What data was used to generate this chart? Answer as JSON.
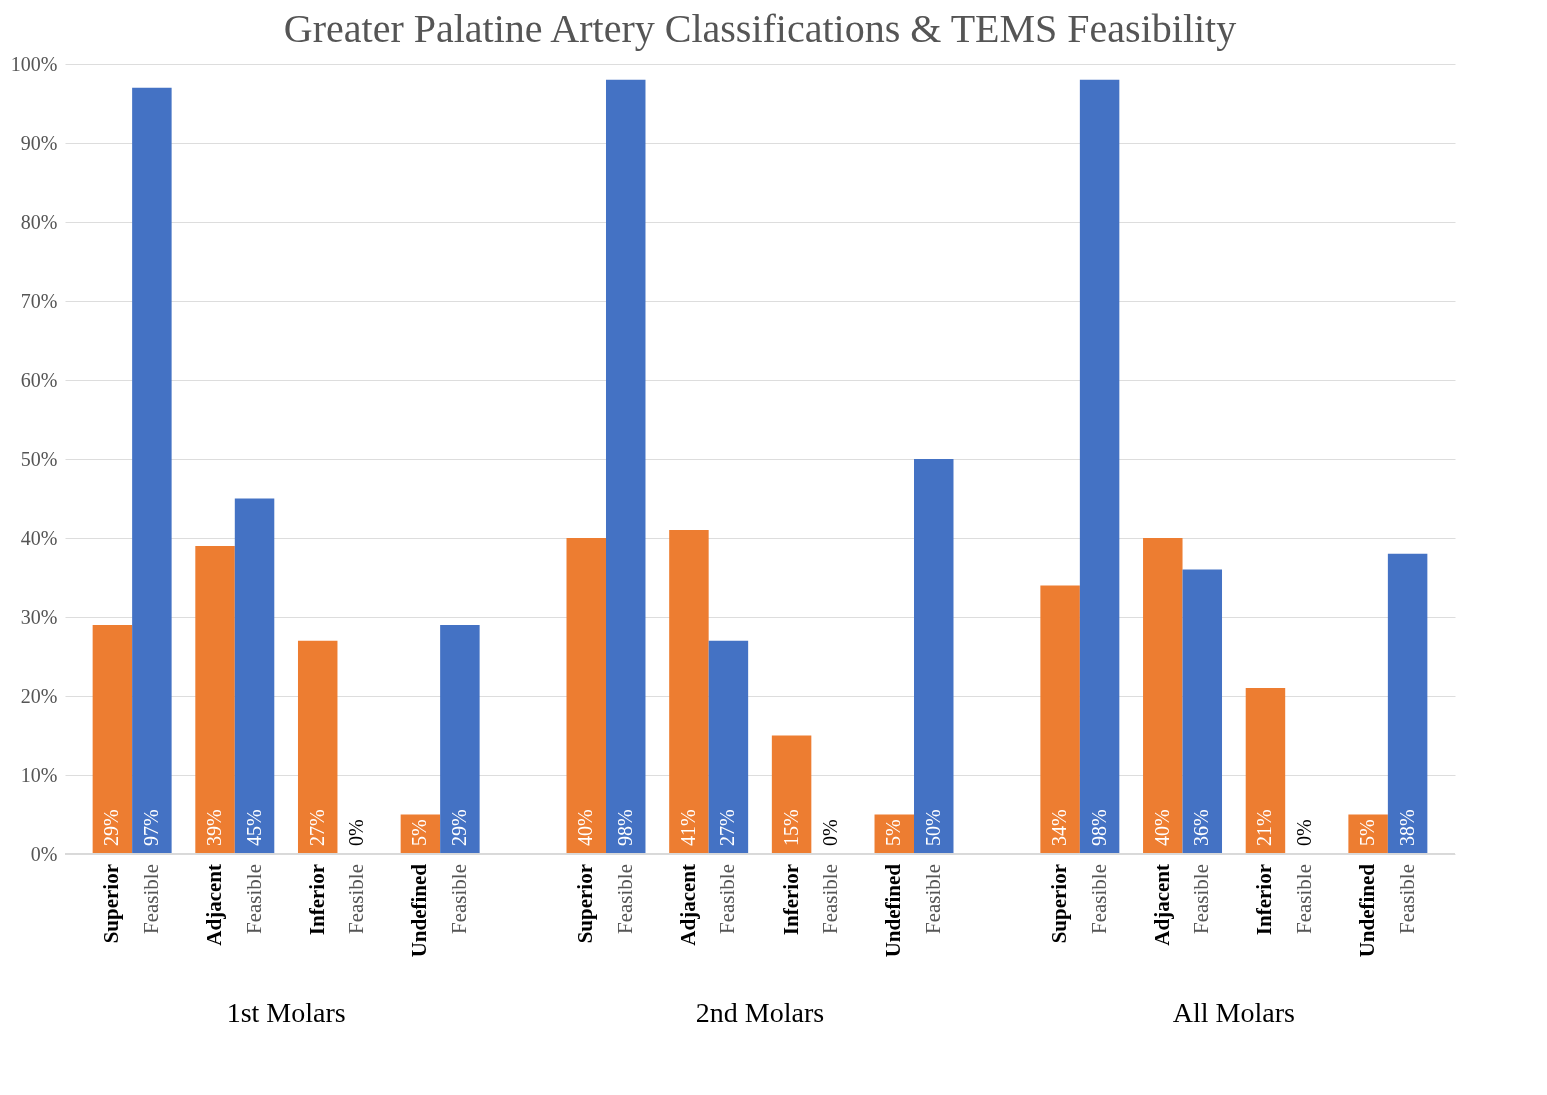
{
  "chart_data": {
    "type": "bar",
    "title": "Greater Palatine Artery Classifications & TEMS Feasibility",
    "categories": [
      "Superior",
      "Feasible",
      "Adjacent",
      "Feasible",
      "Inferior",
      "Feasible",
      "Undefined",
      "Feasible",
      "Superior",
      "Feasible",
      "Adjacent",
      "Feasible",
      "Inferior",
      "Feasible",
      "Undefined",
      "Feasible",
      "Superior",
      "Feasible",
      "Adjacent",
      "Feasible",
      "Inferior",
      "Feasible",
      "Undefined",
      "Feasible"
    ],
    "values": [
      29,
      97,
      39,
      45,
      27,
      0,
      5,
      29,
      40,
      98,
      41,
      27,
      15,
      0,
      5,
      50,
      34,
      98,
      40,
      36,
      21,
      0,
      5,
      38
    ],
    "colors": [
      "#ed7d31",
      "#4472c4",
      "#ed7d31",
      "#4472c4",
      "#ed7d31",
      "#4472c4",
      "#ed7d31",
      "#4472c4",
      "#ed7d31",
      "#4472c4",
      "#ed7d31",
      "#4472c4",
      "#ed7d31",
      "#4472c4",
      "#ed7d31",
      "#4472c4",
      "#ed7d31",
      "#4472c4",
      "#ed7d31",
      "#4472c4",
      "#ed7d31",
      "#4472c4",
      "#ed7d31",
      "#4472c4"
    ],
    "value_labels": [
      "29%",
      "97%",
      "39%",
      "45%",
      "27%",
      "0%",
      "5%",
      "29%",
      "40%",
      "98%",
      "41%",
      "27%",
      "15%",
      "0%",
      "5%",
      "50%",
      "34%",
      "98%",
      "40%",
      "36%",
      "21%",
      "0%",
      "5%",
      "38%"
    ],
    "ylim": [
      0,
      100
    ],
    "yticks": [
      {
        "value": 0,
        "label": "0%"
      },
      {
        "value": 10,
        "label": "10%"
      },
      {
        "value": 20,
        "label": "20%"
      },
      {
        "value": 30,
        "label": "30%"
      },
      {
        "value": 40,
        "label": "40%"
      },
      {
        "value": 50,
        "label": "50%"
      },
      {
        "value": 60,
        "label": "60%"
      },
      {
        "value": 70,
        "label": "70%"
      },
      {
        "value": 80,
        "label": "80%"
      },
      {
        "value": 90,
        "label": "90%"
      },
      {
        "value": 100,
        "label": "100%"
      }
    ],
    "grid": "y",
    "annotations": [
      "1st Molars",
      "2nd Molars",
      "All Molars"
    ]
  }
}
